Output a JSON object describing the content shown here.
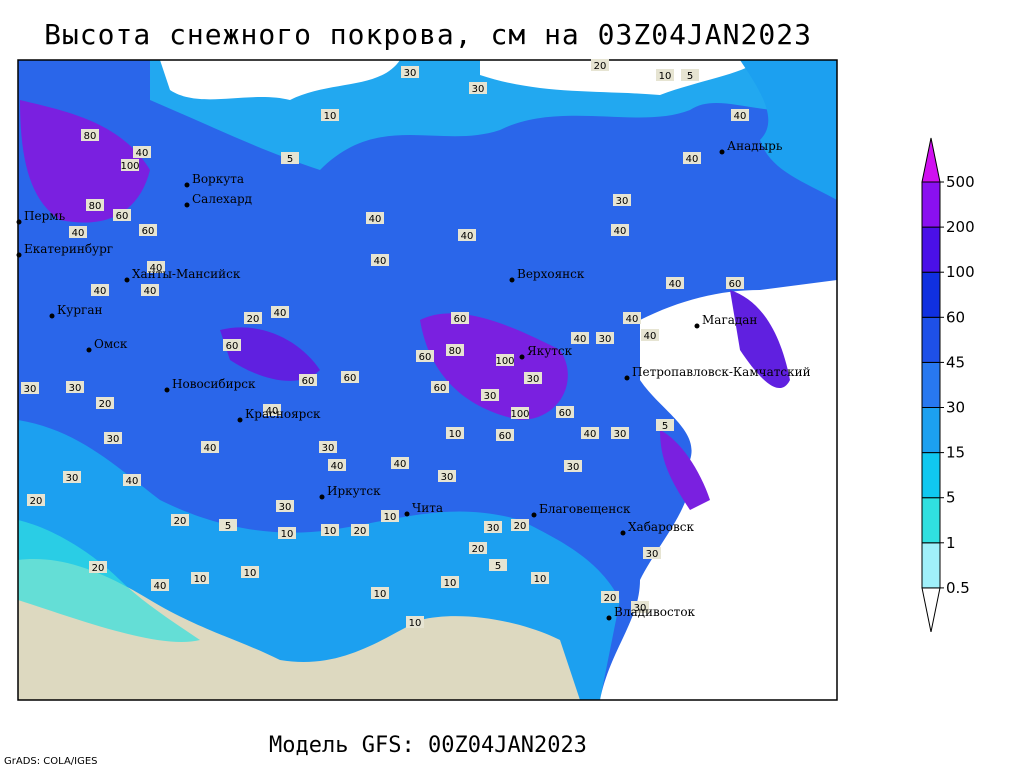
{
  "header": {
    "title": "Высота снежного покрова, см на 03Z04JAN2023"
  },
  "footer": {
    "model": "Модель GFS: 00Z04JAN2023",
    "credit": "GrADS: COLA/IGES"
  },
  "map": {
    "cities": [
      "Воркута",
      "Салехард",
      "Пермь",
      "Екатеринбург",
      "Ханты-Мансийск",
      "Курган",
      "Омск",
      "Новосибирск",
      "Красноярск",
      "Иркутск",
      "Чита",
      "Благовещенск",
      "Хабаровск",
      "Владивосток",
      "Верхоянск",
      "Якутск",
      "Магадан",
      "Петропавловск-Камчатский",
      "Анадырь"
    ],
    "contour_labels": [
      30,
      30,
      20,
      10,
      5,
      10,
      5,
      80,
      100,
      40,
      80,
      60,
      60,
      40,
      40,
      40,
      40,
      30,
      30,
      20,
      30,
      30,
      40,
      20,
      20,
      20,
      40,
      10,
      10,
      40,
      40,
      40,
      40,
      40,
      40,
      30,
      40,
      60,
      60,
      80,
      100,
      30,
      60,
      30,
      100,
      60,
      40,
      30,
      40,
      40,
      60,
      60,
      60,
      40,
      60,
      20,
      40,
      40,
      30,
      40,
      40,
      30,
      60,
      30,
      10,
      20,
      30,
      20,
      20,
      5,
      10,
      10,
      10,
      10,
      20,
      30,
      30,
      5,
      10,
      30,
      5,
      10,
      10,
      30,
      40
    ]
  },
  "colorbar": {
    "levels": [
      0.5,
      1,
      5,
      15,
      30,
      45,
      60,
      100,
      200,
      500
    ],
    "colors": [
      "#ffffff",
      "#a0f0fa",
      "#30e0e0",
      "#10c8f0",
      "#1ca0f0",
      "#2878f0",
      "#1e50e8",
      "#1030e0",
      "#4a10e8",
      "#8a10f0",
      "#d010f0"
    ]
  }
}
